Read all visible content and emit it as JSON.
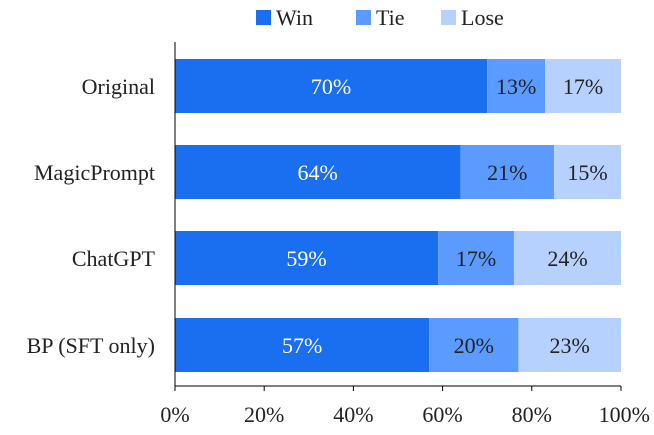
{
  "chart_data": {
    "type": "bar",
    "orientation": "horizontal",
    "stacked": true,
    "categories": [
      "Original",
      "MagicPrompt",
      "ChatGPT",
      "BP (SFT only)"
    ],
    "series": [
      {
        "name": "Win",
        "values": [
          70,
          64,
          59,
          57
        ],
        "labels": [
          "70%",
          "64%",
          "59%",
          "57%"
        ],
        "color": "#1a6ef0",
        "label_color": "#ffffff"
      },
      {
        "name": "Tie",
        "values": [
          13,
          21,
          17,
          20
        ],
        "labels": [
          "13%",
          "21%",
          "17%",
          "20%"
        ],
        "color": "#5b9bff",
        "label_color": "#222222"
      },
      {
        "name": "Lose",
        "values": [
          17,
          15,
          24,
          23
        ],
        "labels": [
          "17%",
          "15%",
          "24%",
          "23%"
        ],
        "color": "#b7d1ff",
        "label_color": "#222222"
      }
    ],
    "xlim": [
      0,
      100
    ],
    "xticks": [
      "0%",
      "20%",
      "40%",
      "60%",
      "80%",
      "100%"
    ],
    "grid": false,
    "legend_position": "top-center"
  }
}
